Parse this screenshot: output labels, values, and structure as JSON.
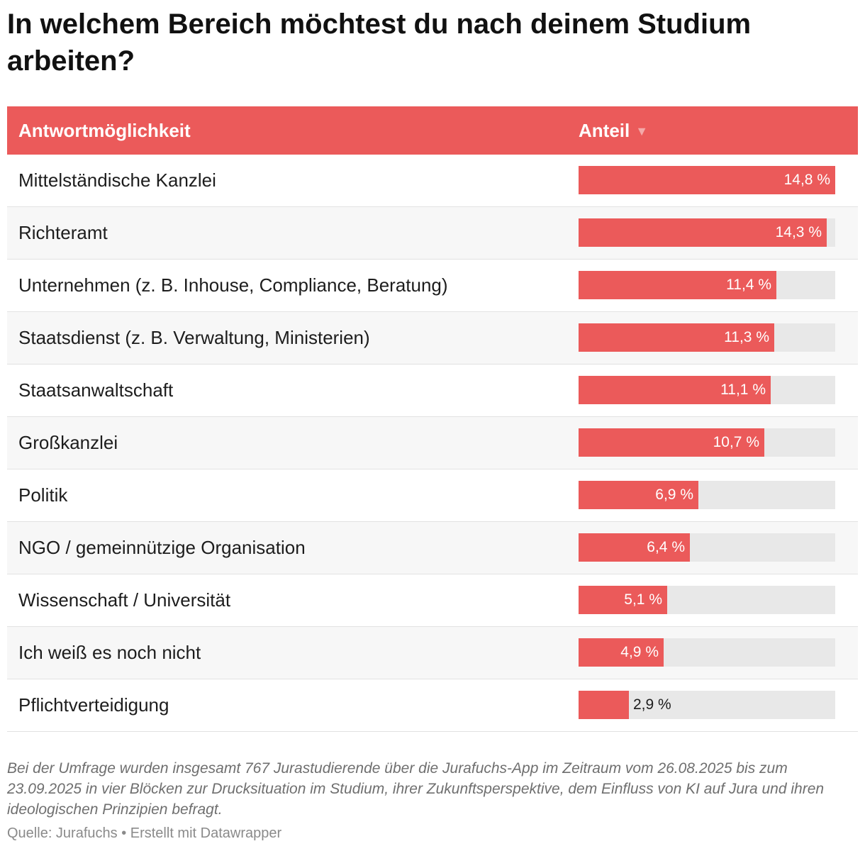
{
  "title": "In welchem Bereich möchtest du nach deinem Studium arbeiten?",
  "table": {
    "header_label": "Antwortmöglichkeit",
    "header_value": "Anteil",
    "sort_icon": "sort-descending-triangle"
  },
  "colors": {
    "accent": "#eb5a5a",
    "bar_track": "#e8e8e8"
  },
  "chart_data": {
    "type": "bar",
    "orientation": "horizontal",
    "categories": [
      "Mittelständische Kanzlei",
      "Richteramt",
      "Unternehmen (z. B. Inhouse, Compliance, Beratung)",
      "Staatsdienst (z. B. Verwaltung, Ministerien)",
      "Staatsanwaltschaft",
      "Großkanzlei",
      "Politik",
      "NGO / gemeinnützige Organisation",
      "Wissenschaft / Universität",
      "Ich weiß es noch nicht",
      "Pflichtverteidigung"
    ],
    "values": [
      14.8,
      14.3,
      11.4,
      11.3,
      11.1,
      10.7,
      6.9,
      6.4,
      5.1,
      4.9,
      2.9
    ],
    "value_labels": [
      "14,8 %",
      "14,3 %",
      "11,4 %",
      "11,3 %",
      "11,1 %",
      "10,7 %",
      "6,9 %",
      "6,4 %",
      "5,1 %",
      "4,9 %",
      "2,9 %"
    ],
    "xlim": [
      0,
      14.8
    ],
    "sorted": "descending by Anteil"
  },
  "notes": "Bei der Umfrage wurden insgesamt 767 Jurastudierende über die Jurafuchs-App im Zeitraum vom 26.08.2025 bis zum 23.09.2025 in vier Blöcken zur Drucksituation im Studium, ihrer Zukunftsperspektive, dem Einfluss von KI auf Jura und ihren ideologischen Prinzipien befragt.",
  "source": "Quelle: Jurafuchs • Erstellt mit Datawrapper"
}
